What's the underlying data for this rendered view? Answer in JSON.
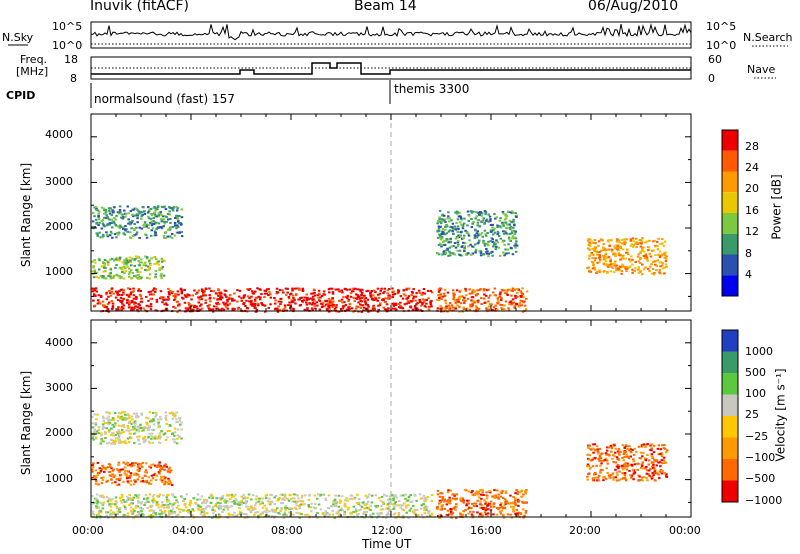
{
  "header": {
    "station": "Inuvik (fitACF)",
    "beam": "Beam 14",
    "date": "06/Aug/2010"
  },
  "sky_panel": {
    "left_label": "N.Sky",
    "right_label": "N.Search",
    "left_ticks": [
      "10^5",
      "10^0"
    ],
    "right_ticks": [
      "10^5",
      "10^0"
    ]
  },
  "freq_panel": {
    "left_label_1": "Freq.",
    "left_label_2": "[MHz]",
    "right_label": "Nave",
    "left_ticks": [
      "18",
      "8"
    ],
    "right_ticks": [
      "60",
      "0"
    ]
  },
  "cpid_panel": {
    "label": "CPID",
    "programs": [
      {
        "name": "normalsound (fast) 157",
        "start_hour": 0
      },
      {
        "name": "themis 3300",
        "start_hour": 12
      }
    ]
  },
  "chart_data": [
    {
      "type": "heatmap",
      "name": "power",
      "ylabel": "Slant Range [km]",
      "yticks": [
        "4000",
        "3000",
        "2000",
        "1000"
      ],
      "ylim": [
        180,
        4500
      ],
      "xlim": [
        0,
        24
      ],
      "colorbar": {
        "label": "Power [dB]",
        "ticks": [
          "28",
          "24",
          "20",
          "16",
          "12",
          "8",
          "4"
        ],
        "colors": [
          "#ee0000",
          "#ff5a00",
          "#ff9a00",
          "#e8c800",
          "#7cc840",
          "#3a9a6a",
          "#2a50b0",
          "#0000ee"
        ]
      },
      "scatter_regions": [
        {
          "t0": 0.0,
          "t1": 13.6,
          "r0": 180,
          "r1": 700,
          "value": 28
        },
        {
          "t0": 0.0,
          "t1": 2.9,
          "r0": 900,
          "r1": 1400,
          "value": 12
        },
        {
          "t0": 0.0,
          "t1": 3.6,
          "r0": 1800,
          "r1": 2500,
          "value": 8
        },
        {
          "t0": 13.8,
          "t1": 17.4,
          "r0": 180,
          "r1": 700,
          "value": 24
        },
        {
          "t0": 13.8,
          "t1": 17.0,
          "r0": 1400,
          "r1": 2400,
          "value": 8
        },
        {
          "t0": 19.8,
          "t1": 23.0,
          "r0": 1000,
          "r1": 1800,
          "value": 20
        }
      ]
    },
    {
      "type": "heatmap",
      "name": "velocity",
      "ylabel": "Slant Range [km]",
      "yticks": [
        "4000",
        "3000",
        "2000",
        "1000"
      ],
      "ylim": [
        180,
        4500
      ],
      "xlim": [
        0,
        24
      ],
      "xlabel": "Time UT",
      "xticks": [
        "00:00",
        "04:00",
        "08:00",
        "12:00",
        "16:00",
        "20:00",
        "00:00"
      ],
      "colorbar": {
        "label": "Velocity [m s⁻¹]",
        "ticks": [
          "1000",
          "500",
          "100",
          "25",
          "−25",
          "−100",
          "−500",
          "−1000"
        ],
        "colors": [
          "#2040c0",
          "#3a9a6a",
          "#5cc840",
          "#c8c8c0",
          "#ffc800",
          "#ff9a00",
          "#ff6a00",
          "#ee0000"
        ]
      },
      "scatter_regions": [
        {
          "t0": 0.0,
          "t1": 13.6,
          "r0": 180,
          "r1": 700,
          "value": 25
        },
        {
          "t0": 0.0,
          "t1": 3.6,
          "r0": 1800,
          "r1": 2500,
          "value": 25
        },
        {
          "t0": 0.0,
          "t1": 3.2,
          "r0": 900,
          "r1": 1400,
          "value": -500
        },
        {
          "t0": 13.8,
          "t1": 17.4,
          "r0": 180,
          "r1": 800,
          "value": -500
        },
        {
          "t0": 19.8,
          "t1": 23.0,
          "r0": 1000,
          "r1": 1800,
          "value": -500
        }
      ]
    }
  ],
  "colors": {
    "axis": "#000000",
    "grid_dash": "#aaaaaa"
  }
}
